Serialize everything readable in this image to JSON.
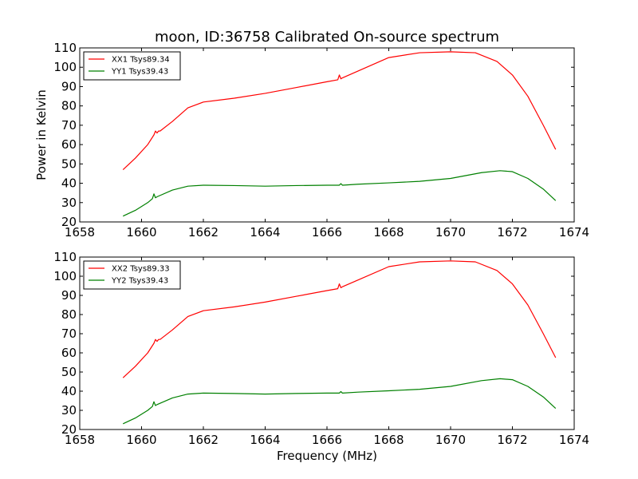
{
  "title": "moon, ID:36758 Calibrated On-source spectrum",
  "colors": {
    "xx": "#ff0000",
    "yy": "#008000"
  },
  "chart_data": [
    {
      "type": "line",
      "title": "moon, ID:36758 Calibrated On-source spectrum",
      "xlabel": "",
      "ylabel": "Power in Kelvin",
      "xlim": [
        1658,
        1674
      ],
      "ylim": [
        20,
        110
      ],
      "xticks": [
        "1658",
        "1660",
        "1662",
        "1664",
        "1666",
        "1668",
        "1670",
        "1672",
        "1674"
      ],
      "yticks": [
        "20",
        "30",
        "40",
        "50",
        "60",
        "70",
        "80",
        "90",
        "100",
        "110"
      ],
      "legend_position": "top-left",
      "series": [
        {
          "name": "XX1 Tsys89.34",
          "color": "#ff0000",
          "x": [
            1659.4,
            1659.8,
            1660.2,
            1660.4,
            1660.45,
            1660.5,
            1660.55,
            1660.6,
            1661.0,
            1661.5,
            1662.0,
            1663.0,
            1664.0,
            1665.0,
            1666.0,
            1666.35,
            1666.4,
            1666.45,
            1666.5,
            1667.0,
            1668.0,
            1669.0,
            1670.0,
            1670.8,
            1671.5,
            1672.0,
            1672.5,
            1673.0,
            1673.4
          ],
          "y": [
            47,
            53,
            60,
            65,
            67,
            66,
            67,
            67,
            72,
            79,
            82,
            84,
            86.5,
            89.5,
            92.5,
            93.5,
            96,
            94,
            94.5,
            98,
            105,
            107.5,
            108,
            107.5,
            103,
            96,
            85,
            70,
            57.5
          ]
        },
        {
          "name": "YY1 Tsys39.43",
          "color": "#008000",
          "x": [
            1659.4,
            1659.8,
            1660.2,
            1660.35,
            1660.4,
            1660.45,
            1660.5,
            1661.0,
            1661.5,
            1662.0,
            1663.0,
            1664.0,
            1665.0,
            1666.0,
            1666.4,
            1666.45,
            1666.5,
            1667.0,
            1668.0,
            1669.0,
            1670.0,
            1671.0,
            1671.6,
            1672.0,
            1672.5,
            1673.0,
            1673.4
          ],
          "y": [
            23,
            26,
            30,
            32,
            34.5,
            32.5,
            33,
            36.5,
            38.5,
            39,
            38.8,
            38.5,
            38.8,
            39,
            39,
            39.8,
            39,
            39.5,
            40.2,
            41,
            42.5,
            45.5,
            46.5,
            46,
            42.5,
            37,
            31
          ]
        }
      ]
    },
    {
      "type": "line",
      "title": "",
      "xlabel": "Frequency (MHz)",
      "ylabel": "",
      "xlim": [
        1658,
        1674
      ],
      "ylim": [
        20,
        110
      ],
      "xticks": [
        "1658",
        "1660",
        "1662",
        "1664",
        "1666",
        "1668",
        "1670",
        "1672",
        "1674"
      ],
      "yticks": [
        "20",
        "30",
        "40",
        "50",
        "60",
        "70",
        "80",
        "90",
        "100",
        "110"
      ],
      "legend_position": "top-left",
      "series": [
        {
          "name": "XX2 Tsys89.33",
          "color": "#ff0000",
          "x": [
            1659.4,
            1659.8,
            1660.2,
            1660.4,
            1660.45,
            1660.5,
            1660.55,
            1660.6,
            1661.0,
            1661.5,
            1662.0,
            1663.0,
            1664.0,
            1665.0,
            1666.0,
            1666.35,
            1666.4,
            1666.45,
            1666.5,
            1667.0,
            1668.0,
            1669.0,
            1670.0,
            1670.8,
            1671.5,
            1672.0,
            1672.5,
            1673.0,
            1673.4
          ],
          "y": [
            47,
            53,
            60,
            65,
            67,
            66,
            67,
            67,
            72,
            79,
            82,
            84,
            86.5,
            89.5,
            92.5,
            93.5,
            96,
            94,
            94.5,
            98,
            105,
            107.5,
            108,
            107.5,
            103,
            96,
            85,
            70,
            57.5
          ]
        },
        {
          "name": "YY2 Tsys39.43",
          "color": "#008000",
          "x": [
            1659.4,
            1659.8,
            1660.2,
            1660.35,
            1660.4,
            1660.45,
            1660.5,
            1661.0,
            1661.5,
            1662.0,
            1663.0,
            1664.0,
            1665.0,
            1666.0,
            1666.4,
            1666.45,
            1666.5,
            1667.0,
            1668.0,
            1669.0,
            1670.0,
            1671.0,
            1671.6,
            1672.0,
            1672.5,
            1673.0,
            1673.4
          ],
          "y": [
            23,
            26,
            30,
            32,
            34.5,
            32.5,
            33,
            36.5,
            38.5,
            39,
            38.8,
            38.5,
            38.8,
            39,
            39,
            39.8,
            39,
            39.5,
            40.2,
            41,
            42.5,
            45.5,
            46.5,
            46,
            42.5,
            37,
            31
          ]
        }
      ]
    }
  ]
}
